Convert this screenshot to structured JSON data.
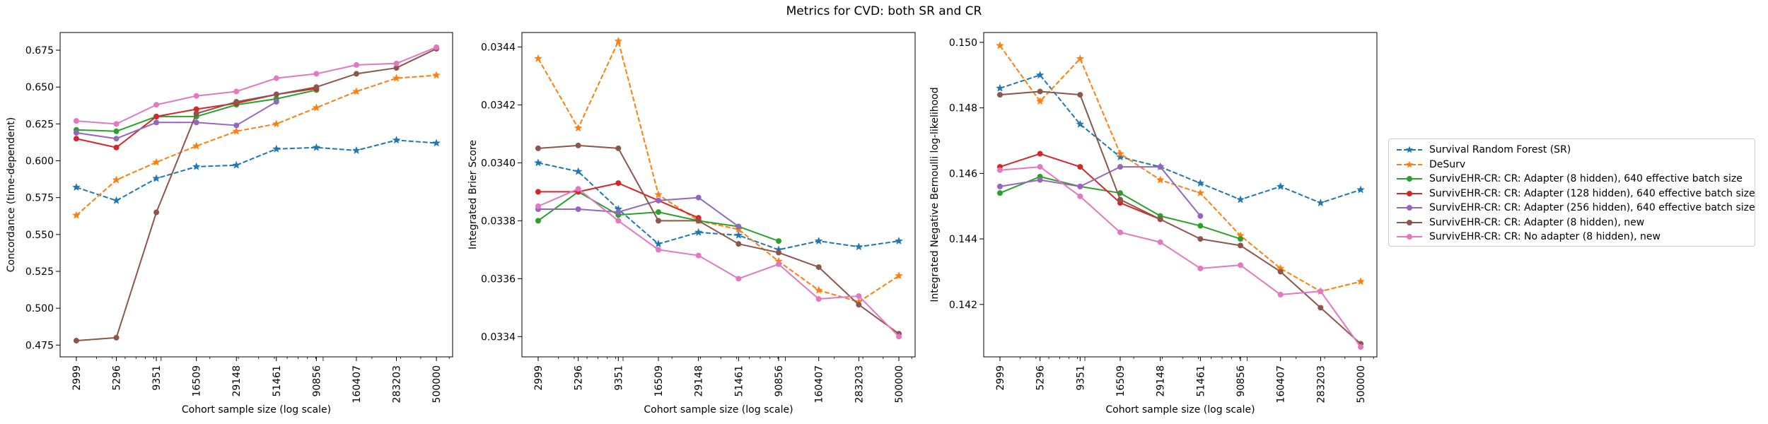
{
  "figure_title": "Metrics for CVD: both SR and CR",
  "series_styles": [
    {
      "name": "Survival Random Forest (SR)",
      "color": "#1f77b4",
      "dash": "dashed",
      "marker": "star"
    },
    {
      "name": "DeSurv",
      "color": "#ff7f0e",
      "dash": "dashed",
      "marker": "star"
    },
    {
      "name": "SurvivEHR-CR: CR: Adapter (8 hidden), 640 effective batch size",
      "color": "#2ca02c",
      "dash": "solid",
      "marker": "circle"
    },
    {
      "name": "SurvivEHR-CR: CR: Adapter (128 hidden), 640 effective batch size",
      "color": "#d62728",
      "dash": "solid",
      "marker": "circle"
    },
    {
      "name": "SurvivEHR-CR: CR: Adapter (256 hidden), 640 effective batch size",
      "color": "#9467bd",
      "dash": "solid",
      "marker": "circle"
    },
    {
      "name": "SurvivEHR-CR: CR: Adapter (8 hidden), new",
      "color": "#8c564b",
      "dash": "solid",
      "marker": "circle"
    },
    {
      "name": "SurvivEHR-CR: CR: No adapter (8 hidden), new",
      "color": "#e377c2",
      "dash": "solid",
      "marker": "circle"
    }
  ],
  "chart_data": [
    {
      "type": "line",
      "xscale": "log",
      "xlabel": "Cohort sample size (log scale)",
      "ylabel": "Concordance (time-dependent)",
      "x": [
        2999,
        5296,
        9351,
        16509,
        29148,
        51461,
        90856,
        160407,
        283203,
        500000
      ],
      "xticklabels": [
        "2999",
        "5296",
        "9351",
        "16509",
        "29148",
        "51461",
        "90856",
        "160407",
        "283203",
        "500000"
      ],
      "ylim": [
        0.467,
        0.687
      ],
      "yticks": [
        0.475,
        0.5,
        0.525,
        0.55,
        0.575,
        0.6,
        0.625,
        0.65,
        0.675
      ],
      "yticklabels": [
        "0.475",
        "0.500",
        "0.525",
        "0.550",
        "0.575",
        "0.600",
        "0.625",
        "0.650",
        "0.675"
      ],
      "series": [
        {
          "name": "Survival Random Forest (SR)",
          "values": [
            0.582,
            0.573,
            0.588,
            0.596,
            0.597,
            0.608,
            0.609,
            0.607,
            0.614,
            0.612
          ]
        },
        {
          "name": "DeSurv",
          "values": [
            0.563,
            0.587,
            0.599,
            0.61,
            0.62,
            0.625,
            0.636,
            0.647,
            0.656,
            0.658
          ]
        },
        {
          "name": "SurvivEHR-CR: CR: Adapter (8 hidden), 640 effective batch size",
          "values": [
            0.621,
            0.62,
            0.63,
            0.63,
            0.638,
            0.642,
            0.648,
            null,
            null,
            null
          ]
        },
        {
          "name": "SurvivEHR-CR: CR: Adapter (128 hidden), 640 effective batch size",
          "values": [
            0.615,
            0.609,
            0.63,
            0.635,
            0.639,
            0.645,
            0.649,
            null,
            null,
            null
          ]
        },
        {
          "name": "SurvivEHR-CR: CR: Adapter (256 hidden), 640 effective batch size",
          "values": [
            0.619,
            0.615,
            0.626,
            0.626,
            0.624,
            0.64,
            null,
            null,
            null,
            null
          ]
        },
        {
          "name": "SurvivEHR-CR: CR: Adapter (8 hidden), new",
          "values": [
            0.478,
            0.48,
            0.565,
            0.632,
            0.64,
            0.645,
            0.65,
            0.659,
            0.663,
            0.676
          ]
        },
        {
          "name": "SurvivEHR-CR: CR: No adapter (8 hidden), new",
          "values": [
            0.627,
            0.625,
            0.638,
            0.644,
            0.647,
            0.656,
            0.659,
            0.665,
            0.666,
            0.677
          ]
        }
      ]
    },
    {
      "type": "line",
      "xscale": "log",
      "xlabel": "Cohort sample size (log scale)",
      "ylabel": "Integrated Brier Score",
      "x": [
        2999,
        5296,
        9351,
        16509,
        29148,
        51461,
        90856,
        160407,
        283203,
        500000
      ],
      "xticklabels": [
        "2999",
        "5296",
        "9351",
        "16509",
        "29148",
        "51461",
        "90856",
        "160407",
        "283203",
        "500000"
      ],
      "ylim": [
        0.03333,
        0.03445
      ],
      "yticks": [
        0.0334,
        0.0336,
        0.0338,
        0.034,
        0.0342,
        0.0344
      ],
      "yticklabels": [
        "0.0334",
        "0.0336",
        "0.0338",
        "0.0340",
        "0.0342",
        "0.0344"
      ],
      "series": [
        {
          "name": "Survival Random Forest (SR)",
          "values": [
            0.034,
            0.03397,
            0.03384,
            0.03372,
            0.03376,
            0.03375,
            0.0337,
            0.03373,
            0.03371,
            0.03373
          ]
        },
        {
          "name": "DeSurv",
          "values": [
            0.03436,
            0.03412,
            0.03442,
            0.03389,
            0.0338,
            0.03377,
            0.03366,
            0.03356,
            0.03352,
            0.03361
          ]
        },
        {
          "name": "SurvivEHR-CR: CR: Adapter (8 hidden), 640 effective batch size",
          "values": [
            0.0338,
            0.0339,
            0.03382,
            0.03383,
            0.0338,
            0.03378,
            0.03373,
            null,
            null,
            null
          ]
        },
        {
          "name": "SurvivEHR-CR: CR: Adapter (128 hidden), 640 effective batch size",
          "values": [
            0.0339,
            0.0339,
            0.03393,
            0.03387,
            0.03381,
            null,
            null,
            null,
            null,
            null
          ]
        },
        {
          "name": "SurvivEHR-CR: CR: Adapter (256 hidden), 640 effective batch size",
          "values": [
            0.03384,
            0.03384,
            0.03383,
            0.03387,
            0.03388,
            0.03378,
            null,
            null,
            null,
            null
          ]
        },
        {
          "name": "SurvivEHR-CR: CR: Adapter (8 hidden), new",
          "values": [
            0.03405,
            0.03406,
            0.03405,
            0.0338,
            0.0338,
            0.03372,
            0.03369,
            0.03364,
            0.03351,
            0.03341
          ]
        },
        {
          "name": "SurvivEHR-CR: CR: No adapter (8 hidden), new",
          "values": [
            0.03385,
            0.03391,
            0.0338,
            0.0337,
            0.03368,
            0.0336,
            0.03365,
            0.03353,
            0.03354,
            0.0334
          ]
        }
      ]
    },
    {
      "type": "line",
      "xscale": "log",
      "xlabel": "Cohort sample size (log scale)",
      "ylabel": "Integrated Negative Bernoulli log-likelihood",
      "x": [
        2999,
        5296,
        9351,
        16509,
        29148,
        51461,
        90856,
        160407,
        283203,
        500000
      ],
      "xticklabels": [
        "2999",
        "5296",
        "9351",
        "16509",
        "29148",
        "51461",
        "90856",
        "160407",
        "283203",
        "500000"
      ],
      "ylim": [
        0.1404,
        0.1503
      ],
      "yticks": [
        0.142,
        0.144,
        0.146,
        0.148,
        0.15
      ],
      "yticklabels": [
        "0.142",
        "0.144",
        "0.146",
        "0.148",
        "0.150"
      ],
      "series": [
        {
          "name": "Survival Random Forest (SR)",
          "values": [
            0.1486,
            0.149,
            0.1475,
            0.1465,
            0.1462,
            0.1457,
            0.1452,
            0.1456,
            0.1451,
            0.1455
          ]
        },
        {
          "name": "DeSurv",
          "values": [
            0.1499,
            0.1482,
            0.1495,
            0.1466,
            0.1458,
            0.1454,
            0.1441,
            0.1431,
            0.1424,
            0.1427
          ]
        },
        {
          "name": "SurvivEHR-CR: CR: Adapter (8 hidden), 640 effective batch size",
          "values": [
            0.1454,
            0.1459,
            0.1456,
            0.1454,
            0.1447,
            0.1444,
            0.144,
            null,
            null,
            null
          ]
        },
        {
          "name": "SurvivEHR-CR: CR: Adapter (128 hidden), 640 effective batch size",
          "values": [
            0.1462,
            0.1466,
            0.1462,
            0.1451,
            0.1446,
            null,
            null,
            null,
            null,
            null
          ]
        },
        {
          "name": "SurvivEHR-CR: CR: Adapter (256 hidden), 640 effective batch size",
          "values": [
            0.1456,
            0.1458,
            0.1456,
            0.1462,
            0.1462,
            0.1447,
            null,
            null,
            null,
            null
          ]
        },
        {
          "name": "SurvivEHR-CR: CR: Adapter (8 hidden), new",
          "values": [
            0.1484,
            0.1485,
            0.1484,
            0.1452,
            0.1446,
            0.144,
            0.1438,
            0.143,
            0.1419,
            0.1408
          ]
        },
        {
          "name": "SurvivEHR-CR: CR: No adapter (8 hidden), new",
          "values": [
            0.1461,
            0.1462,
            0.1453,
            0.1442,
            0.1439,
            0.1431,
            0.1432,
            0.1423,
            0.1424,
            0.1407
          ]
        }
      ]
    }
  ]
}
